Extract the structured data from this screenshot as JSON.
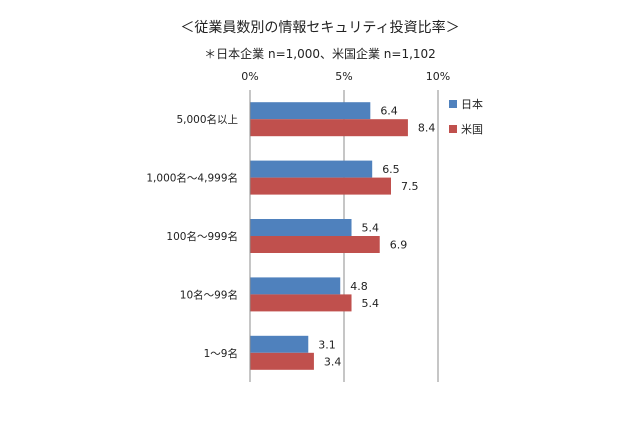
{
  "chart_data": {
    "type": "bar",
    "orientation": "horizontal",
    "title": "＜従業員数別の情報セキュリティ投資比率＞",
    "subtitle": "＊日本企業 n=1,000、米国企業 n=1,102",
    "categories": [
      "5,000名以上",
      "1,000名～4,999名",
      "100名～999名",
      "10名～99名",
      "1～9名"
    ],
    "series": [
      {
        "name": "日本",
        "color": "#4f81bd",
        "values": [
          6.4,
          6.5,
          5.4,
          4.8,
          3.1
        ]
      },
      {
        "name": "米国",
        "color": "#c0504d",
        "values": [
          8.4,
          7.5,
          6.9,
          5.4,
          3.4
        ]
      }
    ],
    "xlim": [
      0,
      10
    ],
    "xticks": [
      "0%",
      "5%",
      "10%"
    ],
    "xtick_values": [
      0,
      5,
      10
    ],
    "grid": true,
    "legend": "right",
    "data_labels": true
  }
}
